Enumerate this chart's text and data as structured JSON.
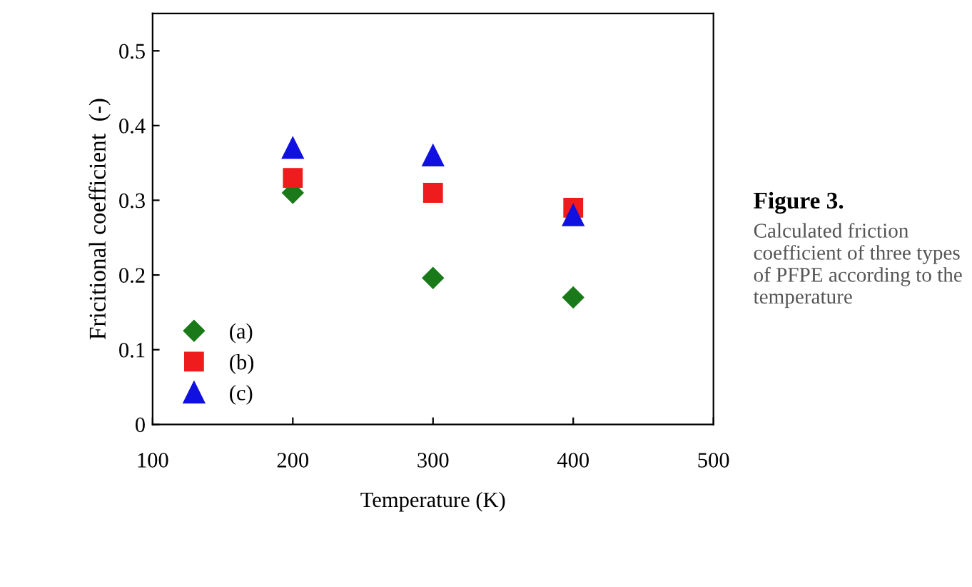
{
  "chart_data": {
    "type": "scatter",
    "title": "Figure 3.",
    "annotations": [
      "Calculated friction coefficient of three types of PFPE according to the temperature"
    ],
    "xlabel": "Temperature (K)",
    "ylabel": "Fricitional coefficient  (-)",
    "series": [
      {
        "name": "(a)",
        "color": "#1a7a1a",
        "marker": "diamond",
        "x": [
          200,
          300,
          400
        ],
        "values": [
          0.31,
          0.196,
          0.17
        ]
      },
      {
        "name": "(b)",
        "color": "#ee1c1c",
        "marker": "square",
        "x": [
          200,
          300,
          400
        ],
        "values": [
          0.33,
          0.31,
          0.29
        ]
      },
      {
        "name": "(c)",
        "color": "#1010e0",
        "marker": "triangle",
        "x": [
          200,
          300,
          400
        ],
        "values": [
          0.37,
          0.36,
          0.28
        ]
      }
    ],
    "xlim": [
      100,
      500
    ],
    "xticks": [
      100,
      200,
      300,
      400,
      500
    ],
    "ylim": [
      0,
      0.55
    ],
    "yticks": [
      0,
      0.1,
      0.2,
      0.3,
      0.4,
      0.5
    ],
    "grid": false,
    "legend": "bottom left"
  }
}
